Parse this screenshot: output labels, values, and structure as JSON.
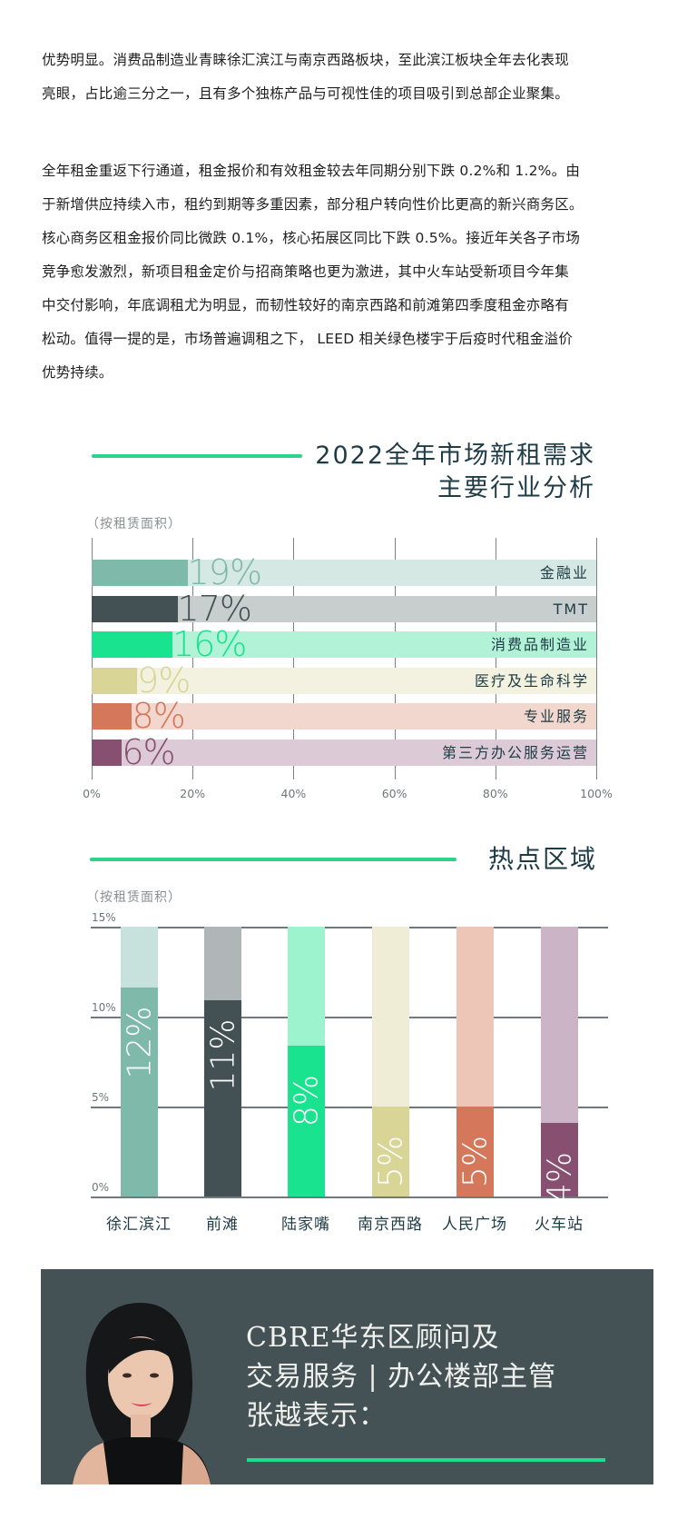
{
  "article": {
    "paragraphs": [
      "优势明显。消费品制造业青睐徐汇滨江与南京西路板块，至此滨江板块全年去化表现亮眼，占比逾三分之一，且有多个独栋产品与可视性佳的项目吸引到总部企业聚集。",
      "全年租金重返下行通道，租金报价和有效租金较去年同期分别下跌 0.2%和 1.2%。由于新增供应持续入市，租约到期等多重因素，部分租户转向性价比更高的新兴商务区。核心商务区租金报价同比微跌 0.1%，核心拓展区同比下跌 0.5%。接近年关各子市场竞争愈发激烈，新项目租金定价与招商策略也更为激进，其中火车站受新项目今年集中交付影响，年底调租尤为明显，而韧性较好的南京西路和前滩第四季度租金亦略有松动。值得一提的是，市场普遍调租之下， LEED 相关绿色楼宇于后疫时代租金溢价优势持续。"
    ],
    "lines": [
      [
        "优势明显。消费品制造业青睐徐汇滨江与南京西路板块，至此滨江板块全年去化表现",
        "亮眼，占比逾三分之一，且有多个独栋产品与可视性佳的项目吸引到总部企业聚集。"
      ],
      [
        "全年租金重返下行通道，租金报价和有效租金较去年同期分别下跌 0.2%和 1.2%。由",
        "于新增供应持续入市，租约到期等多重因素，部分租户转向性价比更高的新兴商务区。",
        "核心商务区租金报价同比微跌 0.1%，核心拓展区同比下跌 0.5%。接近年关各子市场",
        "竞争愈发激烈，新项目租金定价与招商策略也更为激进，其中火车站受新项目今年集",
        "中交付影响，年底调租尤为明显，而韧性较好的南京西路和前滩第四季度租金亦略有",
        "松动。值得一提的是，市场普遍调租之下， LEED 相关绿色楼宇于后疫时代租金溢价",
        "优势持续。"
      ]
    ]
  },
  "colors": {
    "accent": "#2cd38a",
    "title_text": "#1f3b45",
    "banner_bg": "#455255"
  },
  "chart_data": [
    {
      "type": "bar",
      "orientation": "horizontal",
      "title": "2022全年市场新租需求主要行业分析",
      "title_lines": [
        "2022全年市场新租需求",
        "主要行业分析"
      ],
      "subtitle": "（按租赁面积）",
      "categories": [
        "金融业",
        "TMT",
        "消费品制造业",
        "医疗及生命科学",
        "专业服务",
        "第三方办公服务运营"
      ],
      "values": [
        19,
        17,
        16,
        9,
        8,
        6
      ],
      "value_labels": [
        "19%",
        "17%",
        "16%",
        "9%",
        "8%",
        "6%"
      ],
      "colors": [
        "#7fb9aa",
        "#435154",
        "#19e38f",
        "#d9d596",
        "#d4775a",
        "#874f70"
      ],
      "track_colors": [
        "#d6e8e4",
        "#c8cdcd",
        "#b2f3d8",
        "#f3f1df",
        "#f1d7cd",
        "#dccad6"
      ],
      "xlim": [
        0,
        100
      ],
      "xticks": [
        "0%",
        "20%",
        "40%",
        "60%",
        "80%",
        "100%"
      ],
      "xlabel": "",
      "ylabel": "",
      "grid": true
    },
    {
      "type": "bar",
      "orientation": "vertical",
      "title": "热点区域",
      "subtitle": "（按租赁面积）",
      "categories": [
        "徐汇滨江",
        "前滩",
        "陆家嘴",
        "南京西路",
        "人民广场",
        "火车站"
      ],
      "values": [
        12,
        11,
        8,
        5,
        5,
        4
      ],
      "value_labels": [
        "12%",
        "11%",
        "8%",
        "5%",
        "5%",
        "4%"
      ],
      "plot_values": [
        11.6,
        10.9,
        8.4,
        5.0,
        5.0,
        4.1
      ],
      "colors": [
        "#7fb9aa",
        "#435154",
        "#19e38f",
        "#d9d596",
        "#d4775a",
        "#874f70"
      ],
      "track_colors": [
        "#c7e2dd",
        "#b0b5b7",
        "#9ef3cf",
        "#efedd6",
        "#edc6b8",
        "#cbb4c6"
      ],
      "ylim": [
        0,
        15
      ],
      "yticks": [
        "0%",
        "5%",
        "10%",
        "15%"
      ],
      "xlabel": "",
      "ylabel": "",
      "grid": true
    }
  ],
  "banner": {
    "title_lines": [
      "CBRE华东区顾问及",
      "交易服务 | 办公楼部主管",
      "张越表示："
    ],
    "portrait_alt": "person-portrait"
  }
}
